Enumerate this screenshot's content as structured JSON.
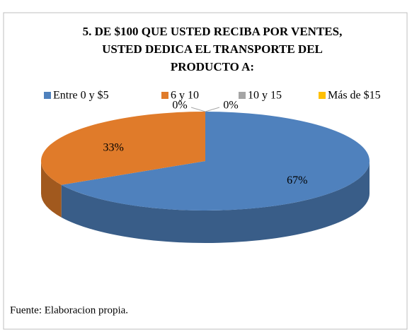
{
  "chart_data": {
    "type": "pie",
    "title": [
      "5. DE $100 QUE USTED RECIBA POR VENTES,",
      "USTED DEDICA EL TRANSPORTE DEL",
      "PRODUCTO A:"
    ],
    "categories": [
      "Entre 0 y $5",
      "6 y 10",
      "10 y 15",
      "Más de $15"
    ],
    "values": [
      67,
      33,
      0,
      0
    ],
    "value_labels": [
      "67%",
      "33%",
      "0%",
      "0%"
    ],
    "colors": [
      "#4f81bd",
      "#e07b2a",
      "#a5a5a5",
      "#ffc000"
    ],
    "legend": "top",
    "source": "Fuente:  Elaboracion propia."
  }
}
